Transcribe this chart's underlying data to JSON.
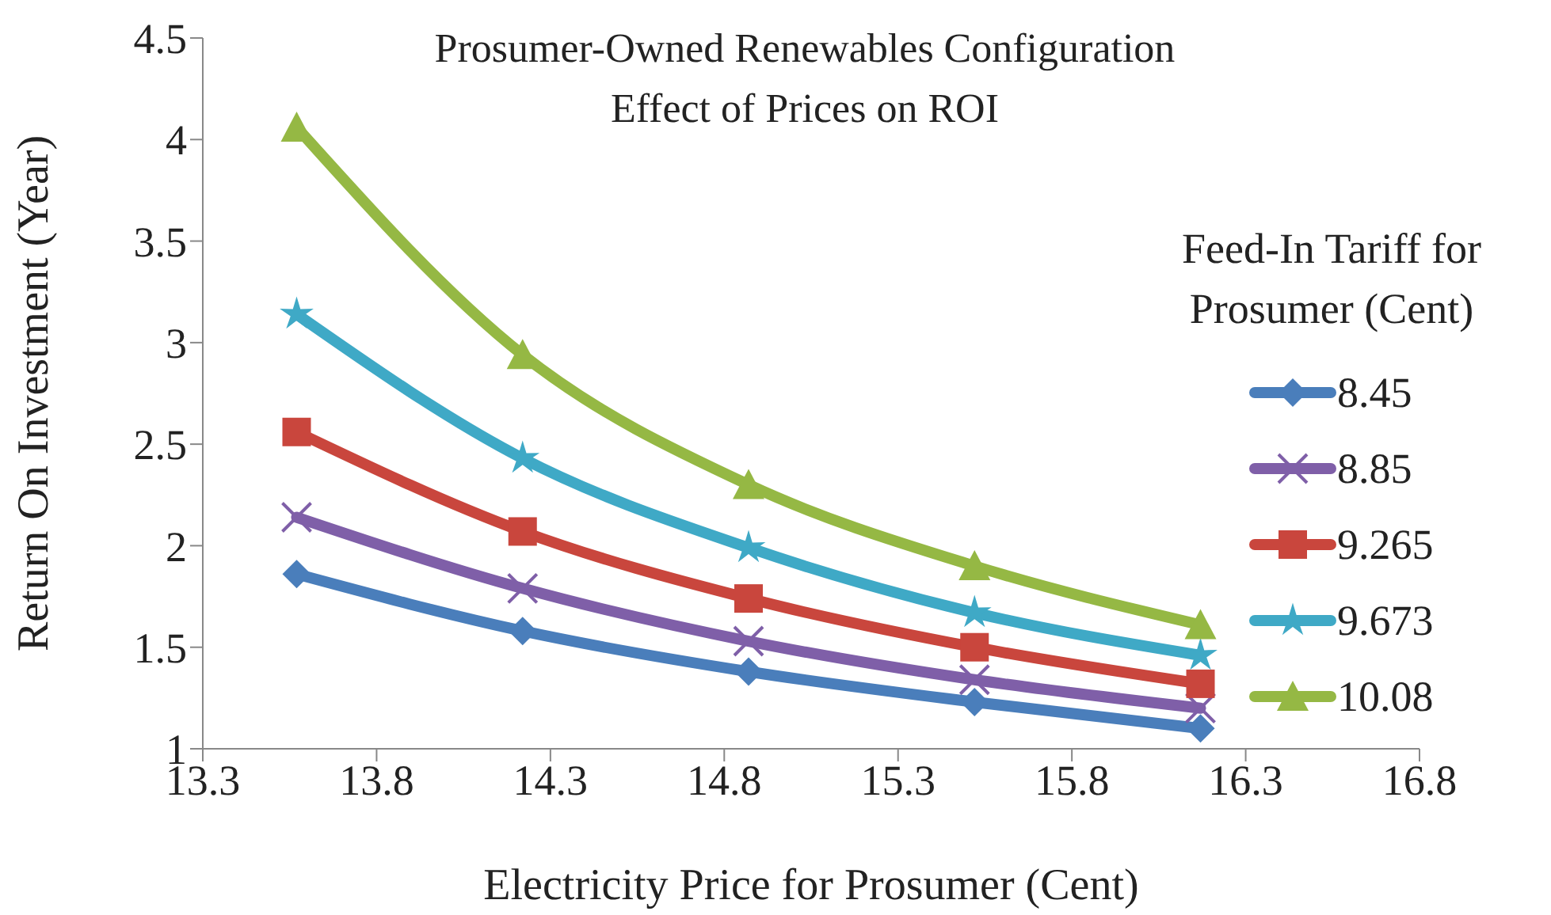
{
  "chart_data": {
    "type": "line",
    "title": "Prosumer-Owned Renewables Configuration",
    "subtitle": "Effect of Prices on ROI",
    "xlabel": "Electricity Price for Prosumer (Cent)",
    "ylabel": "Return On Investment (Year)",
    "legend_title": "Feed-In Tariff for Prosumer (Cent)",
    "x": [
      13.57,
      14.22,
      14.87,
      15.52,
      16.17
    ],
    "series": [
      {
        "name": "8.45",
        "color": "#4a7ebb",
        "marker": "diamond",
        "values": [
          1.86,
          1.58,
          1.38,
          1.23,
          1.1
        ]
      },
      {
        "name": "8.85",
        "color": "#7f5fa8",
        "marker": "cross",
        "values": [
          2.14,
          1.79,
          1.53,
          1.34,
          1.2
        ]
      },
      {
        "name": "9.265",
        "color": "#c9463d",
        "marker": "square",
        "values": [
          2.56,
          2.07,
          1.74,
          1.5,
          1.32
        ]
      },
      {
        "name": "9.673",
        "color": "#3fa9c6",
        "marker": "star",
        "values": [
          3.14,
          2.43,
          1.99,
          1.67,
          1.46
        ]
      },
      {
        "name": "10.08",
        "color": "#95b844",
        "marker": "triangle",
        "values": [
          4.06,
          2.94,
          2.3,
          1.9,
          1.61
        ]
      }
    ],
    "xlim": [
      13.3,
      16.8
    ],
    "xticks": [
      13.3,
      13.8,
      14.3,
      14.8,
      15.3,
      15.8,
      16.3,
      16.8
    ],
    "ylim": [
      1,
      4.5
    ],
    "yticks": [
      1,
      1.5,
      2,
      2.5,
      3,
      3.5,
      4,
      4.5
    ],
    "grid": false,
    "legend": "right",
    "line_style": "solid"
  }
}
